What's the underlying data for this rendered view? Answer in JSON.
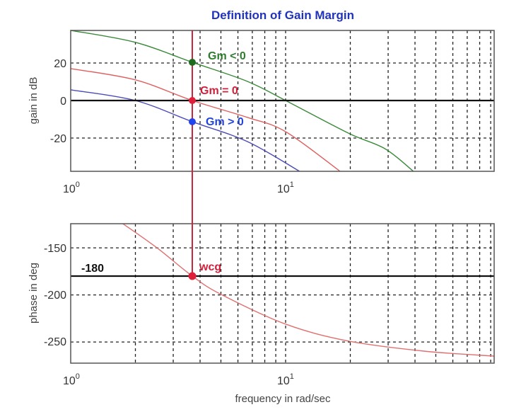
{
  "chart_data": [
    {
      "type": "line",
      "title": "Definition of Gain Margin",
      "xlabel": "",
      "ylabel": "gain in dB",
      "xscale": "log",
      "xlim": [
        1,
        93.6
      ],
      "ylim": [
        -37.7,
        37.4
      ],
      "grid": true,
      "x_tick_labels": [
        "10^0",
        "10^1"
      ],
      "y_ticks": [
        -20,
        0,
        20
      ],
      "reference_line": {
        "y": 0,
        "color": "#111111"
      },
      "marker_frequency": 3.68,
      "series": [
        {
          "name": "Gm < 0",
          "color": "#3a8a3a",
          "x": [
            1,
            2.0,
            3.68,
            6.64,
            10,
            19.6,
            29,
            39.3
          ],
          "y": [
            37.4,
            31,
            20.4,
            10.2,
            0,
            -17.4,
            -25.7,
            -37.7
          ]
        },
        {
          "name": "Gm = 0",
          "color": "#e06060",
          "x": [
            1,
            2.0,
            3.68,
            6.64,
            10,
            17.9
          ],
          "y": [
            17,
            11,
            0,
            -9,
            -16.6,
            -37.7
          ]
        },
        {
          "name": "Gm > 0",
          "color": "#4a4ab8",
          "x": [
            1,
            2.0,
            3.68,
            6.64,
            11.6
          ],
          "y": [
            5.7,
            0,
            -11.3,
            -21.9,
            -37.7
          ]
        }
      ],
      "annotations": [
        {
          "text": "Gm < 0",
          "x": 3.68,
          "y": 20.4,
          "color": "#2e7d2e",
          "marker_color": "#1e6b1e"
        },
        {
          "text": "Gm = 0",
          "x": 3.68,
          "y": 0,
          "color": "#d0203a",
          "marker_color": "#e0203a"
        },
        {
          "text": "Gm > 0",
          "x": 3.68,
          "y": -11.3,
          "color": "#2244dd",
          "marker_color": "#2244ee"
        }
      ]
    },
    {
      "type": "line",
      "title": "",
      "xlabel": "frequency in rad/sec",
      "ylabel": "phase in deg",
      "xscale": "log",
      "xlim": [
        1,
        93.6
      ],
      "ylim": [
        -273,
        -125
      ],
      "grid": true,
      "x_tick_labels": [
        "10^0",
        "10^1"
      ],
      "y_ticks": [
        -250,
        -200,
        -150
      ],
      "reference_line": {
        "y": -180,
        "label": "-180",
        "color": "#111111"
      },
      "series": [
        {
          "name": "phase",
          "color": "#e07070",
          "x": [
            1.75,
            2.52,
            3.68,
            5.01,
            10,
            19.6,
            44,
            93.6
          ],
          "y": [
            -124.4,
            -150,
            -180,
            -199.5,
            -231,
            -249,
            -259.7,
            -265
          ]
        }
      ],
      "annotations": [
        {
          "text": "wcg",
          "x": 3.68,
          "y": -180,
          "color": "#d0203a",
          "marker_color": "#e0203a"
        }
      ]
    }
  ],
  "labels": {
    "title": "Definition of Gain Margin",
    "gain_ylabel": "gain in dB",
    "phase_ylabel": "phase in deg",
    "xlabel": "frequency in rad/sec",
    "gain_ticks": [
      "20",
      "0",
      "-20"
    ],
    "phase_ticks": [
      "-150",
      "-200",
      "-250"
    ],
    "x_tick_base": "10",
    "x_tick_exp0": "0",
    "x_tick_exp1": "1",
    "ref_180": "-180",
    "gm_neg": "Gm < 0",
    "gm_zero": "Gm = 0",
    "gm_pos": "Gm > 0",
    "wcg": "wcg"
  },
  "colors": {
    "title": "#2233bb",
    "gm_neg": "#2e7d2e",
    "gm_zero": "#d0203a",
    "gm_pos": "#2244dd",
    "marker_line": "#c8283c"
  }
}
